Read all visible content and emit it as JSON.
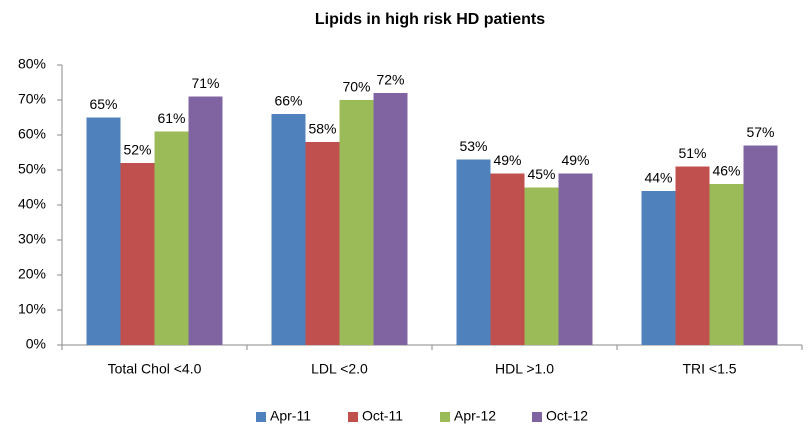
{
  "chart_data": {
    "type": "bar",
    "title": "Lipids in high risk HD patients",
    "categories": [
      "Total Chol <4.0",
      "LDL <2.0",
      "HDL >1.0",
      "TRI <1.5"
    ],
    "series": [
      {
        "name": "Apr-11",
        "color": "#4f81bd",
        "values": [
          65,
          66,
          53,
          44
        ],
        "value_labels": [
          "65%",
          "66%",
          "53%",
          "44%"
        ]
      },
      {
        "name": "Oct-11",
        "color": "#c0504d",
        "values": [
          52,
          58,
          49,
          51
        ],
        "value_labels": [
          "52%",
          "58%",
          "49%",
          "51%"
        ]
      },
      {
        "name": "Apr-12",
        "color": "#9bbb59",
        "values": [
          61,
          70,
          45,
          46
        ],
        "value_labels": [
          "61%",
          "70%",
          "45%",
          "46%"
        ]
      },
      {
        "name": "Oct-12",
        "color": "#8064a2",
        "values": [
          71,
          72,
          49,
          57
        ],
        "value_labels": [
          "71%",
          "72%",
          "49%",
          "57%"
        ]
      }
    ],
    "ylim": [
      0,
      80
    ],
    "yticks": [
      {
        "value": 0,
        "label": "0%"
      },
      {
        "value": 10,
        "label": "10%"
      },
      {
        "value": 20,
        "label": "20%"
      },
      {
        "value": 30,
        "label": "30%"
      },
      {
        "value": 40,
        "label": "40%"
      },
      {
        "value": 50,
        "label": "50%"
      },
      {
        "value": 60,
        "label": "60%"
      },
      {
        "value": 70,
        "label": "70%"
      },
      {
        "value": 80,
        "label": "80%"
      }
    ],
    "grid": false,
    "legend": "bottom"
  }
}
